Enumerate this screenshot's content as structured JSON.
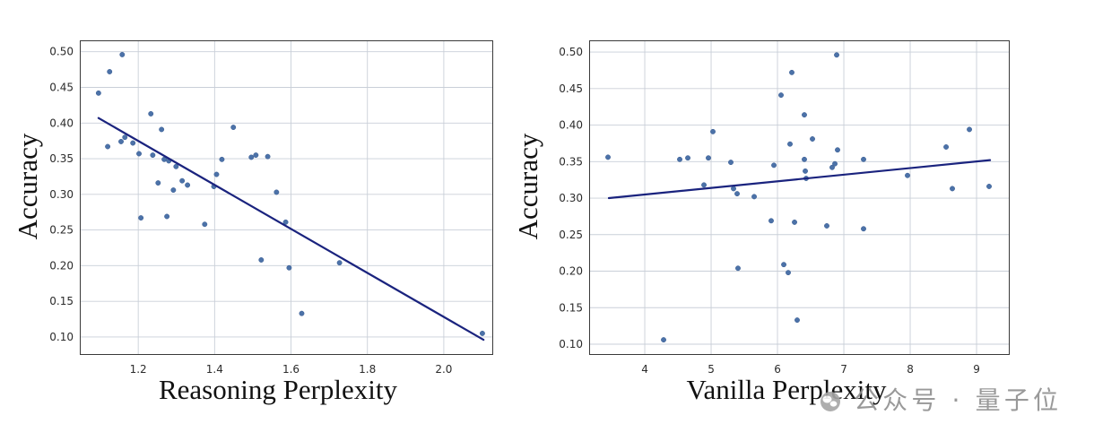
{
  "watermark": {
    "text": "公众号 · 量子位",
    "icon": "wechat-icon"
  },
  "colors": {
    "points": "#4c72a8",
    "point_edge": "#3a5d93",
    "fit_line": "#1a237e",
    "grid": "#c9cfd8",
    "frame": "#3a3a3a",
    "watermark": "#8f8f8f",
    "watermark_icon": "#a6a6a6"
  },
  "chart_data": [
    {
      "type": "scatter",
      "xlabel": "Reasoning Perplexity",
      "ylabel": "Accuracy",
      "xlim": [
        1.047,
        2.127
      ],
      "ylim": [
        0.076,
        0.516
      ],
      "xticks": [
        1.2,
        1.4,
        1.6,
        1.8,
        2.0
      ],
      "xtick_labels": [
        "1.2",
        "1.4",
        "1.6",
        "1.8",
        "2.0"
      ],
      "yticks": [
        0.1,
        0.15,
        0.2,
        0.25,
        0.3,
        0.35,
        0.4,
        0.45,
        0.5
      ],
      "ytick_labels": [
        "0.10",
        "0.15",
        "0.20",
        "0.25",
        "0.30",
        "0.35",
        "0.40",
        "0.45",
        "0.50"
      ],
      "grid": true,
      "series": [
        {
          "points": [
            [
              1.096,
              0.442
            ],
            [
              1.125,
              0.472
            ],
            [
              1.158,
              0.496
            ],
            [
              1.12,
              0.367
            ],
            [
              1.155,
              0.374
            ],
            [
              1.165,
              0.38
            ],
            [
              1.186,
              0.372
            ],
            [
              1.202,
              0.357
            ],
            [
              1.207,
              0.267
            ],
            [
              1.233,
              0.413
            ],
            [
              1.238,
              0.355
            ],
            [
              1.252,
              0.316
            ],
            [
              1.261,
              0.391
            ],
            [
              1.268,
              0.349
            ],
            [
              1.275,
              0.269
            ],
            [
              1.28,
              0.347
            ],
            [
              1.292,
              0.306
            ],
            [
              1.299,
              0.339
            ],
            [
              1.315,
              0.319
            ],
            [
              1.329,
              0.313
            ],
            [
              1.374,
              0.258
            ],
            [
              1.398,
              0.311
            ],
            [
              1.405,
              0.328
            ],
            [
              1.419,
              0.349
            ],
            [
              1.449,
              0.394
            ],
            [
              1.496,
              0.352
            ],
            [
              1.508,
              0.355
            ],
            [
              1.539,
              0.353
            ],
            [
              1.522,
              0.208
            ],
            [
              1.562,
              0.303
            ],
            [
              1.586,
              0.261
            ],
            [
              1.595,
              0.197
            ],
            [
              1.628,
              0.133
            ],
            [
              1.727,
              0.204
            ],
            [
              2.101,
              0.105
            ]
          ]
        }
      ],
      "fit_line": [
        [
          1.096,
          0.407
        ],
        [
          2.104,
          0.096
        ]
      ]
    },
    {
      "type": "scatter",
      "xlabel": "Vanilla Perplexity",
      "ylabel": "Accuracy",
      "xlim": [
        3.162,
        9.486
      ],
      "ylim": [
        0.0865,
        0.516
      ],
      "xticks": [
        4,
        5,
        6,
        7,
        8,
        9
      ],
      "xtick_labels": [
        "4",
        "5",
        "6",
        "7",
        "8",
        "9"
      ],
      "yticks": [
        0.1,
        0.15,
        0.2,
        0.25,
        0.3,
        0.35,
        0.4,
        0.45,
        0.5
      ],
      "ytick_labels": [
        "0.10",
        "0.15",
        "0.20",
        "0.25",
        "0.30",
        "0.35",
        "0.40",
        "0.45",
        "0.50"
      ],
      "grid": true,
      "series": [
        {
          "points": [
            [
              3.446,
              0.356
            ],
            [
              4.284,
              0.106
            ],
            [
              4.527,
              0.353
            ],
            [
              4.649,
              0.355
            ],
            [
              4.959,
              0.355
            ],
            [
              5.027,
              0.391
            ],
            [
              4.892,
              0.318
            ],
            [
              5.297,
              0.349
            ],
            [
              5.338,
              0.313
            ],
            [
              5.392,
              0.306
            ],
            [
              5.405,
              0.204
            ],
            [
              5.649,
              0.302
            ],
            [
              5.905,
              0.269
            ],
            [
              5.946,
              0.345
            ],
            [
              6.054,
              0.441
            ],
            [
              6.095,
              0.209
            ],
            [
              6.162,
              0.198
            ],
            [
              6.189,
              0.374
            ],
            [
              6.216,
              0.472
            ],
            [
              6.257,
              0.267
            ],
            [
              6.297,
              0.133
            ],
            [
              6.405,
              0.414
            ],
            [
              6.405,
              0.353
            ],
            [
              6.419,
              0.337
            ],
            [
              6.432,
              0.327
            ],
            [
              6.527,
              0.381
            ],
            [
              6.743,
              0.262
            ],
            [
              6.824,
              0.342
            ],
            [
              6.865,
              0.347
            ],
            [
              6.905,
              0.366
            ],
            [
              6.892,
              0.496
            ],
            [
              7.297,
              0.353
            ],
            [
              7.297,
              0.258
            ],
            [
              7.959,
              0.331
            ],
            [
              8.541,
              0.37
            ],
            [
              8.635,
              0.313
            ],
            [
              8.892,
              0.394
            ],
            [
              9.189,
              0.316
            ]
          ]
        }
      ],
      "fit_line": [
        [
          3.459,
          0.3
        ],
        [
          9.203,
          0.352
        ]
      ]
    }
  ]
}
